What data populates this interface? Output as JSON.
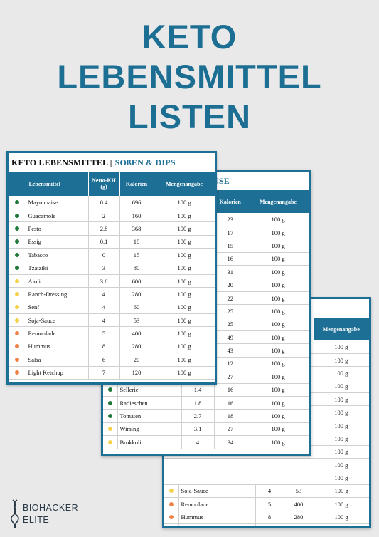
{
  "hero": {
    "line1": "KETO",
    "line2": "LEBENSMITTEL",
    "line3": "LISTEN"
  },
  "logo": {
    "line1": "BIOHACKER",
    "line2": "ELITE"
  },
  "card1": {
    "title_black": "KETO LEBENSMITTEL |",
    "title_blue": "SOßEN & DIPS",
    "headers": [
      "Lebensmittel",
      "Netto-KH (g)",
      "Kalorien",
      "Mengenangabe"
    ],
    "rows": [
      {
        "dot": "green",
        "name": "Mayonnaise",
        "kh": "0.4",
        "kcal": "696",
        "amount": "100 g"
      },
      {
        "dot": "green",
        "name": "Guacamole",
        "kh": "2",
        "kcal": "160",
        "amount": "100 g"
      },
      {
        "dot": "green",
        "name": "Pesto",
        "kh": "2.8",
        "kcal": "368",
        "amount": "100 g"
      },
      {
        "dot": "green",
        "name": "Essig",
        "kh": "0.1",
        "kcal": "18",
        "amount": "100 g"
      },
      {
        "dot": "green",
        "name": "Tabasco",
        "kh": "0",
        "kcal": "15",
        "amount": "100 g"
      },
      {
        "dot": "green",
        "name": "Tzatziki",
        "kh": "3",
        "kcal": "80",
        "amount": "100 g"
      },
      {
        "dot": "yellow",
        "name": "Aioli",
        "kh": "3.6",
        "kcal": "600",
        "amount": "100 g"
      },
      {
        "dot": "yellow",
        "name": "Ranch-Dressing",
        "kh": "4",
        "kcal": "280",
        "amount": "100 g"
      },
      {
        "dot": "yellow",
        "name": "Senf",
        "kh": "4",
        "kcal": "60",
        "amount": "100 g"
      },
      {
        "dot": "yellow",
        "name": "Soja-Sauce",
        "kh": "4",
        "kcal": "53",
        "amount": "100 g"
      },
      {
        "dot": "orange",
        "name": "Remoulade",
        "kh": "5",
        "kcal": "400",
        "amount": "100 g"
      },
      {
        "dot": "orange",
        "name": "Hummus",
        "kh": "8",
        "kcal": "280",
        "amount": "100 g"
      },
      {
        "dot": "orange",
        "name": "Salsa",
        "kh": "6",
        "kcal": "20",
        "amount": "100 g"
      },
      {
        "dot": "orange",
        "name": "Light Ketchup",
        "kh": "7",
        "kcal": "120",
        "amount": "100 g"
      }
    ]
  },
  "card2": {
    "title_blue": "ÜSE",
    "headers": [
      "Kalorien",
      "Mengenangabe"
    ],
    "top_rows": [
      {
        "kcal": "23",
        "amount": "100 g"
      },
      {
        "kcal": "17",
        "amount": "100 g"
      },
      {
        "kcal": "15",
        "amount": "100 g"
      },
      {
        "kcal": "16",
        "amount": "100 g"
      },
      {
        "kcal": "31",
        "amount": "100 g"
      },
      {
        "kcal": "20",
        "amount": "100 g"
      },
      {
        "kcal": "22",
        "amount": "100 g"
      },
      {
        "kcal": "25",
        "amount": "100 g"
      },
      {
        "kcal": "25",
        "amount": "100 g"
      },
      {
        "kcal": "49",
        "amount": "100 g"
      },
      {
        "kcal": "43",
        "amount": "100 g"
      },
      {
        "kcal": "12",
        "amount": "100 g"
      },
      {
        "kcal": "27",
        "amount": "100 g"
      }
    ],
    "bottom_rows": [
      {
        "dot": "green",
        "name": "Sellerie",
        "kh": "1.4",
        "kcal": "16",
        "amount": "100 g"
      },
      {
        "dot": "green",
        "name": "Radieschen",
        "kh": "1.8",
        "kcal": "16",
        "amount": "100 g"
      },
      {
        "dot": "green",
        "name": "Tomaten",
        "kh": "2.7",
        "kcal": "18",
        "amount": "100 g"
      },
      {
        "dot": "yellow",
        "name": "Wirsing",
        "kh": "3.1",
        "kcal": "27",
        "amount": "100 g"
      },
      {
        "dot": "yellow",
        "name": "Brokkoli",
        "kh": "4",
        "kcal": "34",
        "amount": "100 g"
      }
    ]
  },
  "card3": {
    "title_blue": "PS",
    "headers": [
      "Mengenangabe"
    ],
    "top_rows": [
      "100 g",
      "100 g",
      "100 g",
      "100 g",
      "100 g",
      "100 g",
      "100 g",
      "100 g",
      "100 g",
      "100 g",
      "100 g"
    ],
    "bottom_rows": [
      {
        "dot": "yellow",
        "name": "Soja-Sauce",
        "kh": "4",
        "kcal": "53",
        "amount": "100 g"
      },
      {
        "dot": "orange",
        "name": "Remoulade",
        "kh": "5",
        "kcal": "400",
        "amount": "100 g"
      },
      {
        "dot": "orange",
        "name": "Hummus",
        "kh": "8",
        "kcal": "280",
        "amount": "100 g"
      },
      {
        "dot": "orange",
        "name": "Salsa",
        "kh": "6",
        "kcal": "20",
        "amount": "100 g"
      },
      {
        "dot": "orange",
        "name": "Light Ketchup",
        "kh": "7",
        "kcal": "120",
        "amount": "100 g"
      }
    ]
  }
}
